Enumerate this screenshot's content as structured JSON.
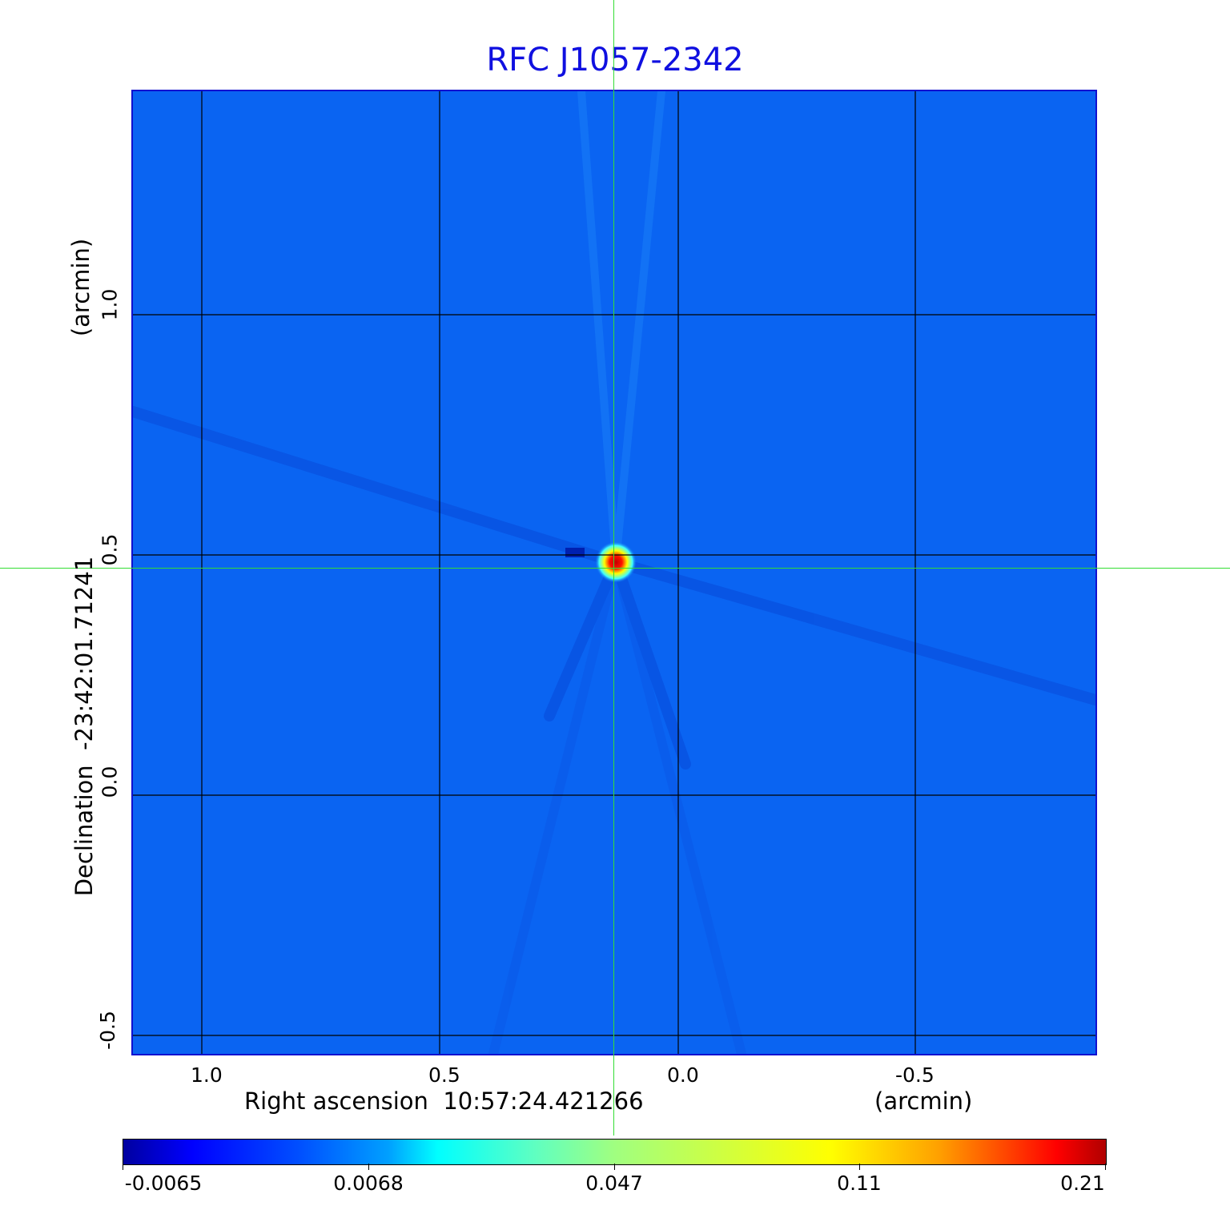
{
  "chart_data": {
    "type": "heatmap",
    "title": "RFC J1057-2342",
    "xlabel": "Right ascension  10:57:24.421266",
    "xunit": "(arcmin)",
    "ylabel": "Declination  -23:42:01.71241",
    "yunit": "(arcmin)",
    "x_ticks": [
      "1.0",
      "0.5",
      "0.0",
      "-0.5"
    ],
    "y_ticks": [
      "1.0",
      "0.5",
      "0.0",
      "-0.5"
    ],
    "xlim": [
      1.15,
      -0.88
    ],
    "ylim": [
      -0.54,
      1.47
    ],
    "grid": true,
    "colormap": "jet",
    "colorbar_ticks": [
      "-0.0065",
      "0.0068",
      "0.047",
      "0.11",
      "0.21"
    ],
    "colorbar_range": [
      -0.0065,
      0.21
    ],
    "peak": {
      "x": 0.13,
      "y": 0.47,
      "value": 0.21
    },
    "crosshair": {
      "x": 0.13,
      "y": 0.47
    }
  },
  "colors": {
    "title": "#1010e0",
    "background": "#0a64f2",
    "crosshair": "#33dd33"
  }
}
